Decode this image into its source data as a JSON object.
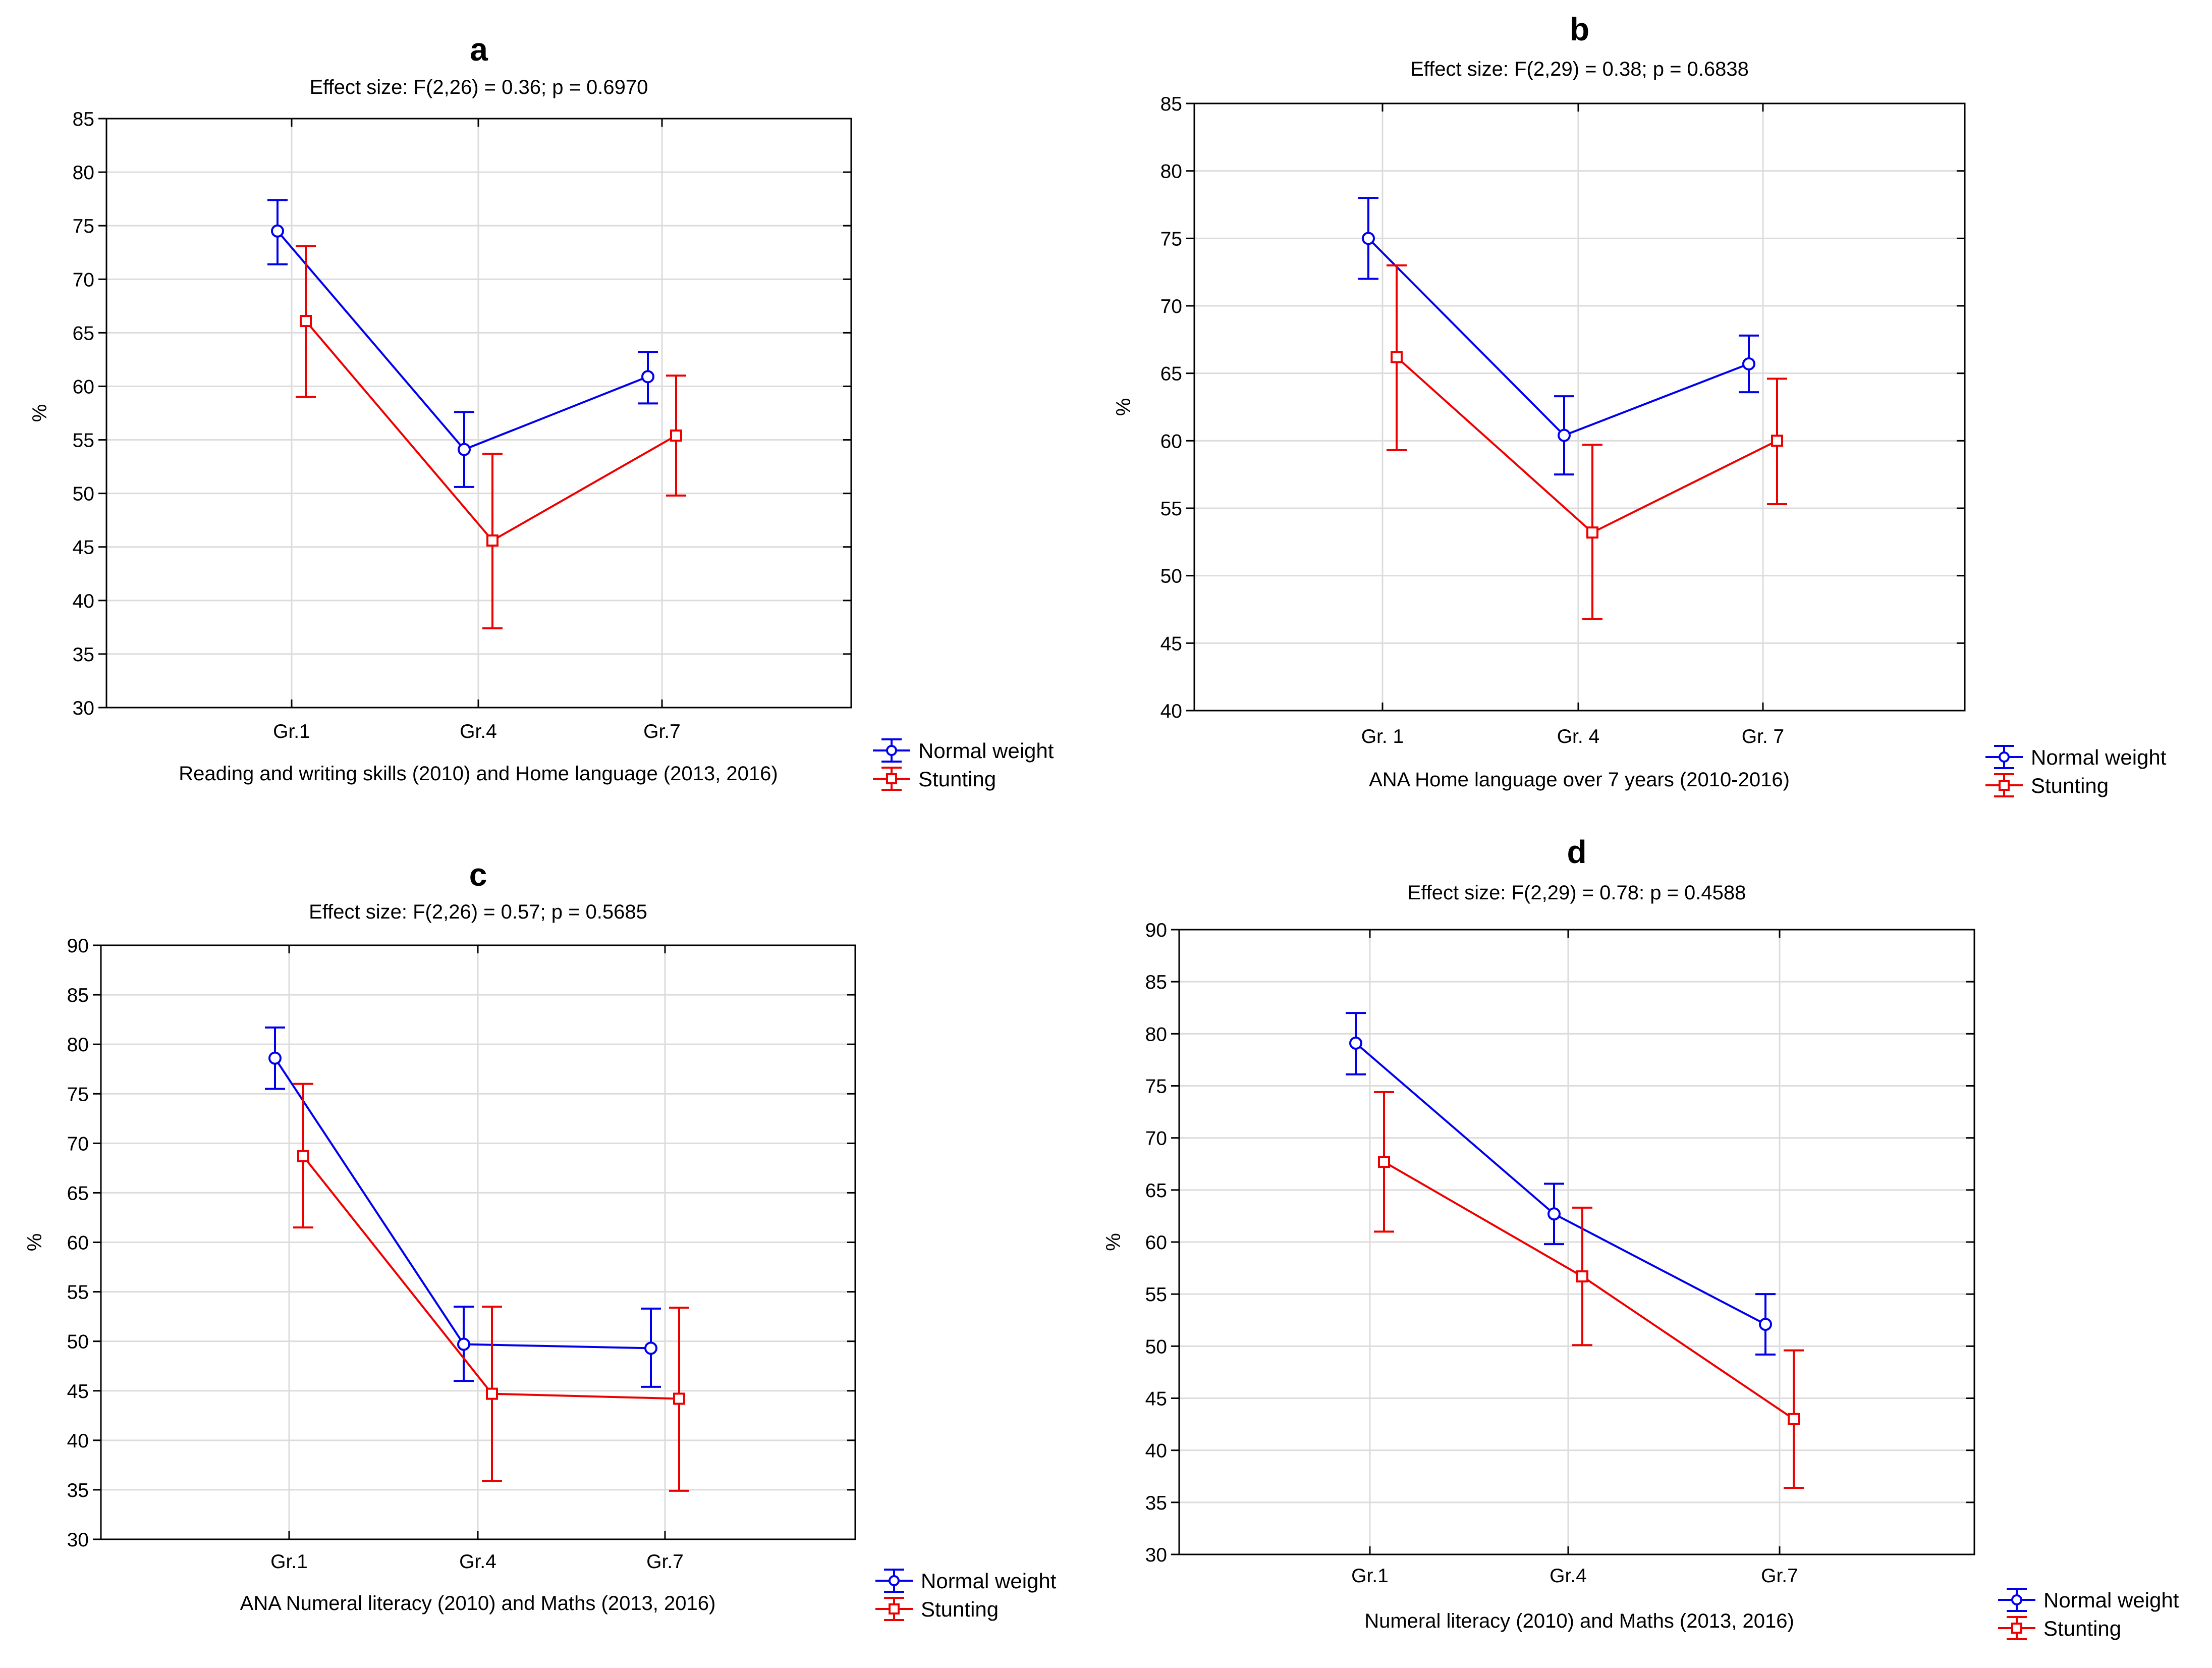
{
  "colors": {
    "normal": "#0000ee",
    "stunting": "#ee0000",
    "grid": "#dcdcdc",
    "axis": "#000000"
  },
  "legend": {
    "normal": "Normal weight",
    "stunting": "Stunting"
  },
  "chart_data": [
    {
      "id": "a",
      "type": "line",
      "panel": "a",
      "subtitle": "Effect size: F(2,26) = 0.36; p = 0.6970",
      "xlabel": "Reading and writing skills (2010) and Home language (2013, 2016)",
      "ylabel": "%",
      "ylim": [
        30,
        85
      ],
      "yticks": [
        30,
        35,
        40,
        45,
        50,
        55,
        60,
        65,
        70,
        75,
        80,
        85
      ],
      "categories": [
        "Gr.1",
        "Gr.4",
        "Gr.7"
      ],
      "series": [
        {
          "name": "Normal weight",
          "values": [
            74.5,
            54.1,
            60.9
          ],
          "lower": [
            71.4,
            50.6,
            58.4
          ],
          "upper": [
            77.4,
            57.6,
            63.2
          ]
        },
        {
          "name": "Stunting",
          "values": [
            66.1,
            45.6,
            55.4
          ],
          "lower": [
            59.0,
            37.4,
            49.8
          ],
          "upper": [
            73.1,
            53.7,
            61.0
          ]
        }
      ]
    },
    {
      "id": "b",
      "type": "line",
      "panel": "b",
      "subtitle": "Effect size: F(2,29) = 0.38; p = 0.6838",
      "xlabel": "ANA Home language over 7 years (2010-2016)",
      "ylabel": "%",
      "ylim": [
        40,
        85
      ],
      "yticks": [
        40,
        45,
        50,
        55,
        60,
        65,
        70,
        75,
        80,
        85
      ],
      "categories": [
        "Gr. 1",
        "Gr. 4",
        "Gr. 7"
      ],
      "series": [
        {
          "name": "Normal weight",
          "values": [
            75.0,
            60.4,
            65.7
          ],
          "lower": [
            72.0,
            57.5,
            63.6
          ],
          "upper": [
            78.0,
            63.3,
            67.8
          ]
        },
        {
          "name": "Stunting",
          "values": [
            66.2,
            53.2,
            60.0
          ],
          "lower": [
            59.3,
            46.8,
            55.3
          ],
          "upper": [
            73.0,
            59.7,
            64.6
          ]
        }
      ]
    },
    {
      "id": "c",
      "type": "line",
      "panel": "c",
      "subtitle": "Effect size: F(2,26) = 0.57; p = 0.5685",
      "xlabel": "ANA Numeral literacy (2010) and Maths (2013, 2016)",
      "ylabel": "%",
      "ylim": [
        30,
        90
      ],
      "yticks": [
        30,
        35,
        40,
        45,
        50,
        55,
        60,
        65,
        70,
        75,
        80,
        85,
        90
      ],
      "categories": [
        "Gr.1",
        "Gr.4",
        "Gr.7"
      ],
      "series": [
        {
          "name": "Normal weight",
          "values": [
            78.6,
            49.7,
            49.3
          ],
          "lower": [
            75.5,
            46.0,
            45.4
          ],
          "upper": [
            81.7,
            53.5,
            53.3
          ]
        },
        {
          "name": "Stunting",
          "values": [
            68.7,
            44.7,
            44.2
          ],
          "lower": [
            61.5,
            35.9,
            34.9
          ],
          "upper": [
            76.0,
            53.5,
            53.4
          ]
        }
      ]
    },
    {
      "id": "d",
      "type": "line",
      "panel": "d",
      "subtitle": "Effect size: F(2,29) = 0.78: p = 0.4588",
      "xlabel": "Numeral literacy (2010) and Maths (2013, 2016)",
      "ylabel": "%",
      "ylim": [
        30,
        90
      ],
      "yticks": [
        30,
        35,
        40,
        45,
        50,
        55,
        60,
        65,
        70,
        75,
        80,
        85,
        90
      ],
      "categories": [
        "Gr.1",
        "Gr.4",
        "Gr.7"
      ],
      "series": [
        {
          "name": "Normal weight",
          "values": [
            79.1,
            62.7,
            52.1
          ],
          "lower": [
            76.1,
            59.8,
            49.2
          ],
          "upper": [
            82.0,
            65.6,
            55.0
          ]
        },
        {
          "name": "Stunting",
          "values": [
            67.7,
            56.7,
            43.0
          ],
          "lower": [
            61.0,
            50.1,
            36.4
          ],
          "upper": [
            74.4,
            63.3,
            49.6
          ]
        }
      ]
    }
  ]
}
